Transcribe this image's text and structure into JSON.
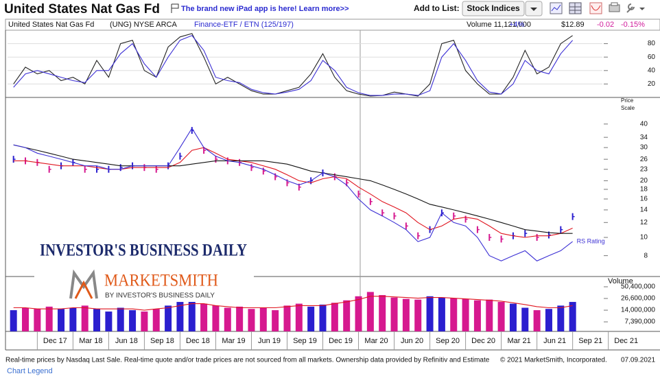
{
  "header": {
    "title": "United States Nat Gas Fd",
    "promo": "The brand new iPad app is here! Learn more>>",
    "add_to_list": "Add to List:",
    "list_button": "Stock Indices"
  },
  "info_bar": {
    "name": "United States Nat Gas Fd",
    "symbol": "(UNG) NYSE ARCA",
    "group": "Finance-ETF / ETN (125/197)",
    "volume": "Volume 11,121,000",
    "volume_change": "+4%",
    "price": "$12.89",
    "change": "-0.02",
    "change_pct": "-0.15%"
  },
  "logo": {
    "ibd": "INVESTOR'S BUSINESS DAILY",
    "marketsmith": "MARKETSMITH",
    "byline": "BY INVESTOR'S BUSINESS DAILY"
  },
  "chart_data": [
    {
      "type": "line",
      "x": [
        "2017-08",
        "2017-09",
        "2017-10",
        "2017-11",
        "2017-12",
        "2018-01",
        "2018-02",
        "2018-03",
        "2018-04",
        "2018-05",
        "2018-06",
        "2018-07",
        "2018-08",
        "2018-09",
        "2018-10",
        "2018-11",
        "2018-12",
        "2019-01",
        "2019-02",
        "2019-03",
        "2019-04",
        "2019-05",
        "2019-06",
        "2019-07",
        "2019-08",
        "2019-09",
        "2019-10",
        "2019-11",
        "2019-12",
        "2020-01",
        "2020-02",
        "2020-03",
        "2020-04",
        "2020-05",
        "2020-06",
        "2020-07",
        "2020-08",
        "2020-09",
        "2020-10",
        "2020-11",
        "2020-12",
        "2021-01",
        "2021-02",
        "2021-03",
        "2021-04",
        "2021-05",
        "2021-06",
        "2021-07"
      ],
      "xlim": [
        "2017-08",
        "2021-10"
      ],
      "ylim": [
        0,
        100
      ],
      "yticks": [
        20,
        40,
        60,
        80
      ],
      "grid": true,
      "series": [
        {
          "color": "#222222",
          "values": [
            20,
            45,
            35,
            40,
            25,
            30,
            20,
            55,
            30,
            80,
            85,
            40,
            30,
            75,
            90,
            95,
            60,
            20,
            30,
            20,
            10,
            5,
            5,
            10,
            15,
            35,
            65,
            30,
            10,
            5,
            2,
            3,
            8,
            5,
            2,
            20,
            80,
            85,
            40,
            20,
            5,
            5,
            30,
            70,
            35,
            45,
            80,
            92
          ]
        },
        {
          "color": "#3b2fd4",
          "values": [
            15,
            35,
            40,
            35,
            30,
            25,
            22,
            40,
            40,
            65,
            80,
            50,
            30,
            60,
            85,
            92,
            70,
            30,
            25,
            22,
            12,
            7,
            5,
            8,
            12,
            25,
            55,
            40,
            15,
            7,
            3,
            3,
            5,
            5,
            3,
            10,
            60,
            80,
            55,
            25,
            8,
            5,
            20,
            55,
            40,
            35,
            65,
            85
          ]
        }
      ]
    },
    {
      "type": "stock",
      "ylabel": [
        "Price",
        "Scale"
      ],
      "yscale": "log",
      "x": [
        "2017-08",
        "2017-09",
        "2017-10",
        "2017-11",
        "2017-12",
        "2018-01",
        "2018-02",
        "2018-03",
        "2018-04",
        "2018-05",
        "2018-06",
        "2018-07",
        "2018-08",
        "2018-09",
        "2018-10",
        "2018-11",
        "2018-12",
        "2019-01",
        "2019-02",
        "2019-03",
        "2019-04",
        "2019-05",
        "2019-06",
        "2019-07",
        "2019-08",
        "2019-09",
        "2019-10",
        "2019-11",
        "2019-12",
        "2020-01",
        "2020-02",
        "2020-03",
        "2020-04",
        "2020-05",
        "2020-06",
        "2020-07",
        "2020-08",
        "2020-09",
        "2020-10",
        "2020-11",
        "2020-12",
        "2021-01",
        "2021-02",
        "2021-03",
        "2021-04",
        "2021-05",
        "2021-06",
        "2021-07"
      ],
      "xlim": [
        "2017-08",
        "2021-10"
      ],
      "ylim": [
        6.2,
        54
      ],
      "yticks": [
        8,
        10,
        12,
        14,
        16,
        18,
        20,
        23,
        26,
        30,
        34,
        40
      ],
      "series": [
        {
          "color": "#2b1fcf",
          "down_color": "#d6198f",
          "values": [
            26,
            25.5,
            25,
            23,
            24,
            25,
            23,
            23,
            23,
            23.5,
            24,
            23.5,
            23,
            24,
            27,
            37,
            29,
            26,
            25.5,
            25,
            23.5,
            22.5,
            21,
            19.5,
            18.5,
            20,
            22,
            21,
            19.5,
            17,
            15.5,
            13.5,
            13,
            11.5,
            10.2,
            11,
            13.5,
            13,
            12.5,
            11,
            10,
            9.8,
            10.2,
            10.5,
            10,
            10.3,
            11,
            12.9
          ]
        },
        {
          "color": "#e0141e",
          "values": [
            25.5,
            25.5,
            25,
            24.5,
            24,
            24,
            24,
            23.5,
            23,
            23,
            23.5,
            23.5,
            23.5,
            23.5,
            25,
            29,
            30,
            28,
            26,
            25.5,
            25,
            24,
            23,
            21.5,
            20,
            19.5,
            20.5,
            21,
            20.5,
            18.5,
            17,
            15.5,
            14.5,
            13.5,
            12,
            11,
            11.5,
            12.5,
            12.8,
            12.5,
            11.5,
            10.5,
            10.2,
            10,
            10.2,
            10.2,
            10.5,
            11.2
          ]
        },
        {
          "color": "#111111",
          "values": [
            31,
            30,
            29,
            28,
            27,
            26,
            25.5,
            25,
            24.5,
            24,
            24,
            24,
            24,
            24,
            24,
            24.5,
            25,
            25.5,
            25.5,
            25.5,
            25.5,
            25.5,
            25,
            24.5,
            23.5,
            22.5,
            22,
            21.5,
            21,
            20.5,
            20,
            19,
            18,
            17,
            16,
            15,
            14.5,
            14,
            13.5,
            13,
            12.5,
            12,
            11.5,
            11,
            10.8,
            10.6,
            10.5,
            10.5
          ]
        },
        {
          "name": "RS Rating",
          "color": "#3b2fd4",
          "values": [
            31,
            30,
            28,
            27,
            26,
            25,
            24,
            24,
            23,
            23,
            24,
            24,
            24,
            24,
            30,
            38,
            30,
            27,
            25.5,
            25,
            24,
            23,
            21.5,
            20,
            19,
            20,
            22,
            21,
            19,
            16,
            14,
            13,
            12,
            11,
            9.5,
            10,
            13.5,
            12,
            11.5,
            10,
            8,
            7.5,
            8,
            8.5,
            7.5,
            8,
            8.5,
            9.5
          ]
        }
      ]
    },
    {
      "type": "bar",
      "ylabel": "Volume",
      "yscale": "log",
      "x": [
        "2017-08",
        "2017-09",
        "2017-10",
        "2017-11",
        "2017-12",
        "2018-01",
        "2018-02",
        "2018-03",
        "2018-04",
        "2018-05",
        "2018-06",
        "2018-07",
        "2018-08",
        "2018-09",
        "2018-10",
        "2018-11",
        "2018-12",
        "2019-01",
        "2019-02",
        "2019-03",
        "2019-04",
        "2019-05",
        "2019-06",
        "2019-07",
        "2019-08",
        "2019-09",
        "2019-10",
        "2019-11",
        "2019-12",
        "2020-01",
        "2020-02",
        "2020-03",
        "2020-04",
        "2020-05",
        "2020-06",
        "2020-07",
        "2020-08",
        "2020-09",
        "2020-10",
        "2020-11",
        "2020-12",
        "2021-01",
        "2021-02",
        "2021-03",
        "2021-04",
        "2021-05",
        "2021-06",
        "2021-07"
      ],
      "xlim": [
        "2017-08",
        "2021-10"
      ],
      "ylim": [
        4380000,
        88500000
      ],
      "yticks": [
        {
          "value": 7390000,
          "label": "7,390,000"
        },
        {
          "value": 14000000,
          "label": "14,000,000"
        },
        {
          "value": 26600000,
          "label": "26,600,000"
        },
        {
          "value": 50400000,
          "label": "50,400,000"
        }
      ],
      "xticks": [
        {
          "value": "2017-12",
          "label": "Dec 17"
        },
        {
          "value": "2018-03",
          "label": "Mar 18"
        },
        {
          "value": "2018-06",
          "label": "Jun 18"
        },
        {
          "value": "2018-09",
          "label": "Sep 18"
        },
        {
          "value": "2018-12",
          "label": "Dec 18"
        },
        {
          "value": "2019-03",
          "label": "Mar 19"
        },
        {
          "value": "2019-06",
          "label": "Jun 19"
        },
        {
          "value": "2019-09",
          "label": "Sep 19"
        },
        {
          "value": "2019-12",
          "label": "Dec 19"
        },
        {
          "value": "2020-03",
          "label": "Mar 20"
        },
        {
          "value": "2020-06",
          "label": "Jun 20"
        },
        {
          "value": "2020-09",
          "label": "Sep 20"
        },
        {
          "value": "2020-12",
          "label": "Dec 20"
        },
        {
          "value": "2021-03",
          "label": "Mar 21"
        },
        {
          "value": "2021-06",
          "label": "Jun 21"
        },
        {
          "value": "2021-09",
          "label": "Sep 21"
        },
        {
          "value": "2021-12",
          "label": "Dec 21"
        }
      ],
      "series": [
        {
          "color": "#2b1fcf",
          "down_color": "#d6198f",
          "values": [
            14000000,
            16000000,
            15000000,
            17000000,
            15000000,
            16000000,
            18000000,
            15000000,
            13000000,
            16000000,
            14000000,
            13000000,
            15000000,
            18000000,
            22000000,
            24000000,
            20000000,
            18000000,
            16000000,
            17000000,
            15000000,
            16000000,
            14000000,
            18000000,
            20000000,
            17000000,
            19000000,
            21000000,
            24000000,
            30000000,
            38000000,
            32000000,
            28000000,
            26000000,
            25000000,
            30000000,
            28000000,
            27000000,
            26000000,
            24000000,
            25000000,
            22000000,
            20000000,
            16000000,
            14000000,
            15000000,
            18000000,
            22000000
          ]
        },
        {
          "color": "#e0141e",
          "values": [
            16000000,
            16000000,
            15000000,
            15000000,
            15000000,
            16000000,
            16000000,
            15000000,
            15000000,
            15000000,
            15000000,
            14000000,
            15000000,
            16000000,
            18000000,
            20000000,
            20000000,
            18000000,
            17000000,
            16000000,
            16000000,
            16000000,
            16000000,
            17000000,
            18000000,
            18000000,
            18000000,
            20000000,
            22000000,
            25000000,
            30000000,
            30000000,
            29000000,
            28000000,
            27000000,
            28000000,
            28000000,
            27000000,
            26000000,
            25000000,
            24000000,
            23000000,
            21000000,
            19000000,
            17000000,
            16000000,
            16000000,
            18000000
          ]
        }
      ]
    }
  ],
  "footer": {
    "disclaimer": "Real-time prices by Nasdaq Last Sale. Real-time quote and/or trade prices are not sourced from all markets. Ownership data provided by Refinitiv and Estimate",
    "copyright": "© 2021 MarketSmith, Incorporated.",
    "date": "07.09.2021",
    "legend_link": "Chart Legend"
  }
}
